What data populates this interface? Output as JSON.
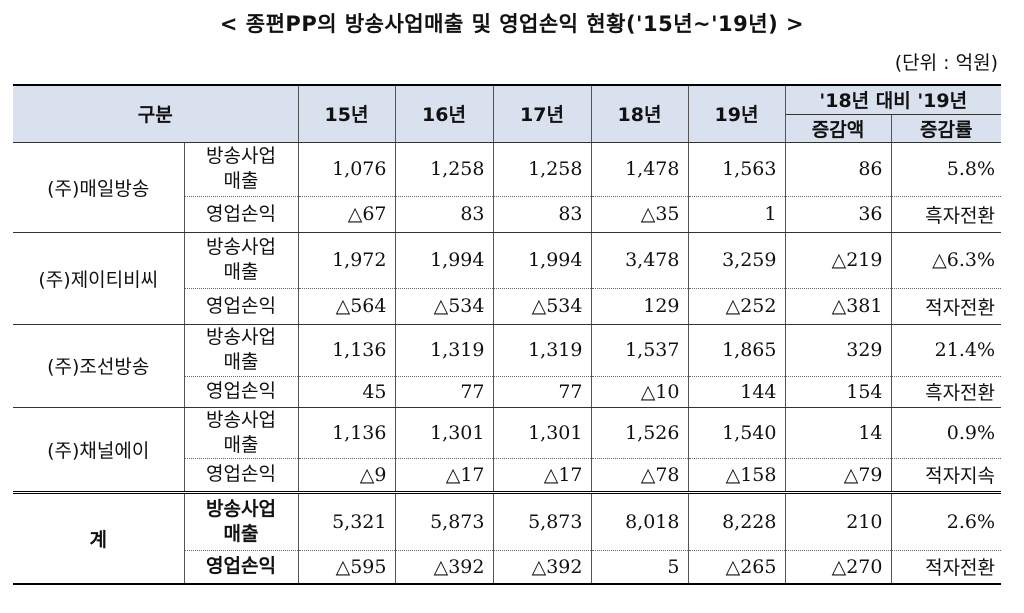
{
  "title": "< 종편PP의 방송사업매출 및 영업손익 현황('15년~'19년) >",
  "unit": "(단위 : 억원)",
  "header": {
    "category": "구분",
    "years": [
      "15년",
      "16년",
      "17년",
      "18년",
      "19년"
    ],
    "compare": "'18년 대비 '19년",
    "diff": "증감액",
    "rate": "증감률"
  },
  "rows": [
    {
      "company": "(주)매일방송",
      "revenue": {
        "label": "방송사업\n매출",
        "values": [
          "1,076",
          "1,258",
          "1,258",
          "1,478",
          "1,563"
        ],
        "diff": "86",
        "rate": "5.8%"
      },
      "profit": {
        "label": "영업손익",
        "values": [
          "△67",
          "83",
          "83",
          "△35",
          "1"
        ],
        "diff": "36",
        "rate": "흑자전환"
      }
    },
    {
      "company": "(주)제이티비씨",
      "revenue": {
        "label": "방송사업\n매출",
        "values": [
          "1,972",
          "1,994",
          "1,994",
          "3,478",
          "3,259"
        ],
        "diff": "△219",
        "rate": "△6.3%"
      },
      "profit": {
        "label": "영업손익",
        "values": [
          "△564",
          "△534",
          "△534",
          "129",
          "△252"
        ],
        "diff": "△381",
        "rate": "적자전환"
      }
    },
    {
      "company": "(주)조선방송",
      "revenue": {
        "label": "방송사업\n매출",
        "values": [
          "1,136",
          "1,319",
          "1,319",
          "1,537",
          "1,865"
        ],
        "diff": "329",
        "rate": "21.4%"
      },
      "profit": {
        "label": "영업손익",
        "values": [
          "45",
          "77",
          "77",
          "△10",
          "144"
        ],
        "diff": "154",
        "rate": "흑자전환"
      }
    },
    {
      "company": "(주)채널에이",
      "revenue": {
        "label": "방송사업\n매출",
        "values": [
          "1,136",
          "1,301",
          "1,301",
          "1,526",
          "1,540"
        ],
        "diff": "14",
        "rate": "0.9%"
      },
      "profit": {
        "label": "영업손익",
        "values": [
          "△9",
          "△17",
          "△17",
          "△78",
          "△158"
        ],
        "diff": "△79",
        "rate": "적자지속"
      }
    }
  ],
  "total": {
    "label": "계",
    "revenue": {
      "label": "방송사업\n매출",
      "values": [
        "5,321",
        "5,873",
        "5,873",
        "8,018",
        "8,228"
      ],
      "diff": "210",
      "rate": "2.6%"
    },
    "profit": {
      "label": "영업손익",
      "values": [
        "△595",
        "△392",
        "△392",
        "5",
        "△265"
      ],
      "diff": "△270",
      "rate": "적자전환"
    }
  }
}
